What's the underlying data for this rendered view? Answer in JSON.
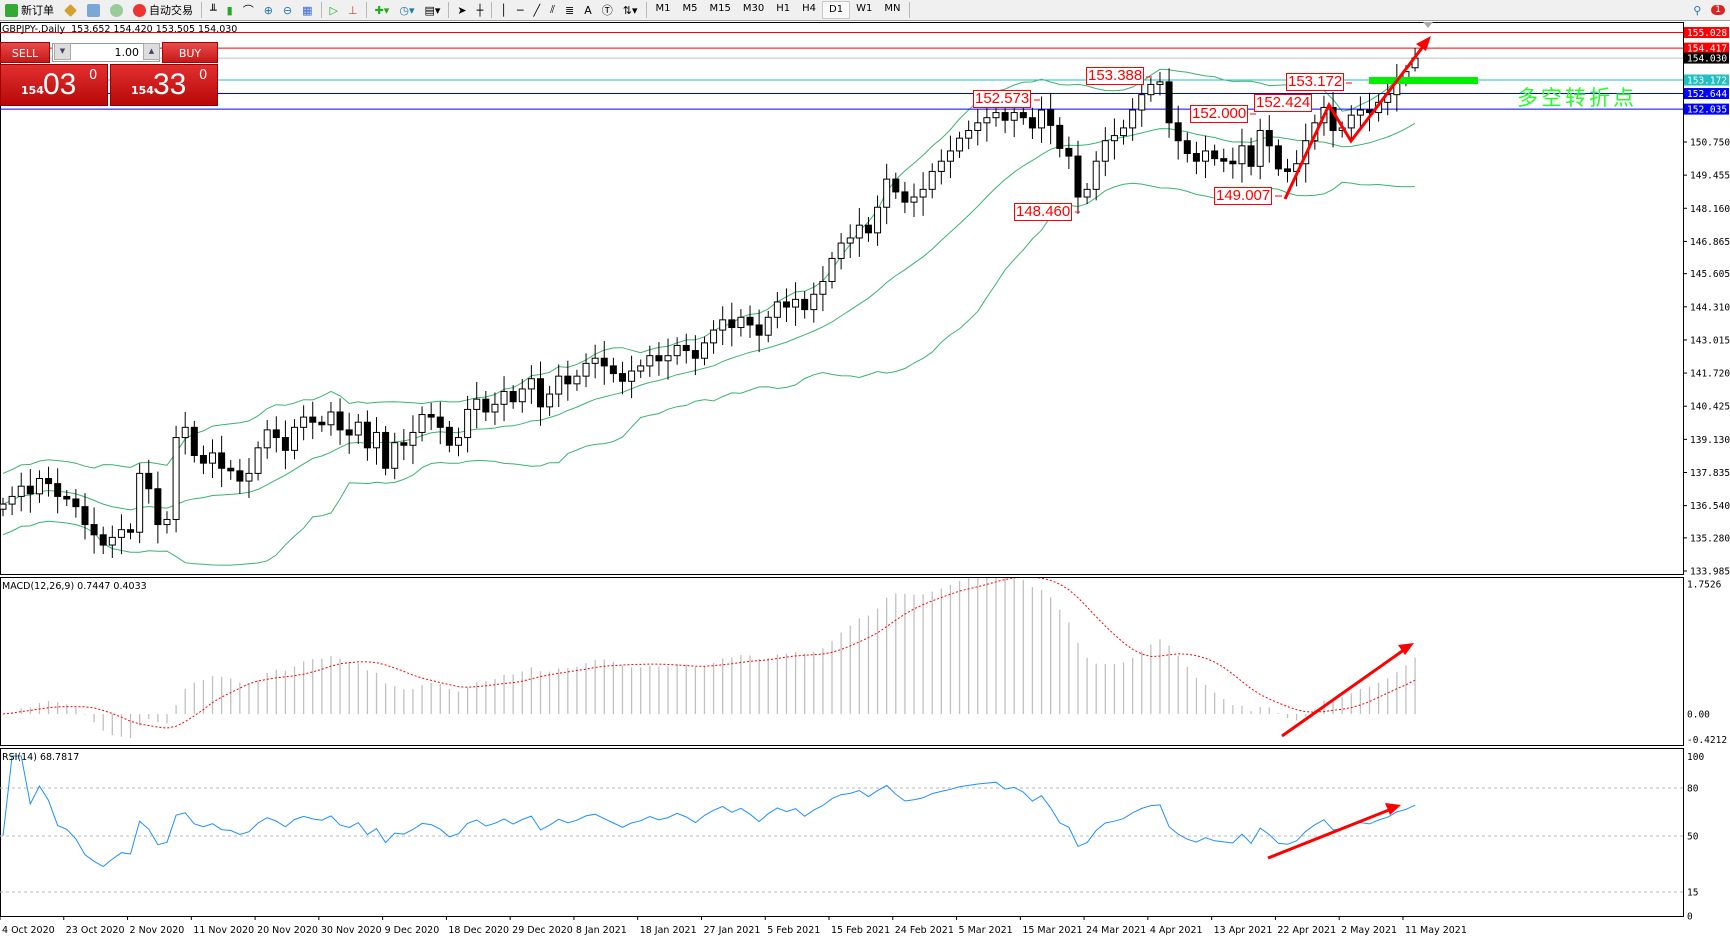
{
  "toolbar": {
    "new_order": "新订单",
    "auto_trading": "自动交易",
    "timeframes": [
      "M1",
      "M5",
      "M15",
      "M30",
      "H1",
      "H4",
      "D1",
      "W1",
      "MN"
    ],
    "active_timeframe": "D1",
    "notification_count": "1"
  },
  "chart_header": {
    "title": "GBPJPY-.Daily  153.652 154.420 153.505 154.030"
  },
  "trade_panel": {
    "sell_label": "SELL",
    "buy_label": "BUY",
    "lot": "1.00",
    "sell_big": "154",
    "sell_digits": "03",
    "sell_sup": "0",
    "buy_big": "154",
    "buy_digits": "33",
    "buy_sup": "0",
    "color": "#d42020"
  },
  "annotations": {
    "a1": "152.573",
    "a2": "153.388",
    "a3": "153.172",
    "a4": "152.424",
    "a5": "152.000",
    "a6": "149.007",
    "a7": "148.460",
    "pivot_text": "多空转折点",
    "pivot_color": "#22ff22",
    "arrow_color": "#ff0000"
  },
  "chart_data": {
    "type": "candlestick",
    "symbol": "GBPJPY-",
    "timeframe": "Daily",
    "price_axis": {
      "ticks": [
        "150.750",
        "149.455",
        "148.160",
        "146.865",
        "145.605",
        "144.310",
        "143.015",
        "141.720",
        "140.425",
        "139.130",
        "137.835",
        "136.540",
        "135.280",
        "133.985"
      ],
      "range": [
        133.985,
        155.028
      ]
    },
    "horizontal_lines": [
      {
        "price": "155.028",
        "color": "#ff0000"
      },
      {
        "price": "154.417",
        "color": "#ff0000"
      },
      {
        "price": "154.030",
        "color": "#000000",
        "line_color": "#c0c0c0"
      },
      {
        "price": "153.172",
        "color": "#20c0c0"
      },
      {
        "price": "152.644",
        "color": "#0000ff"
      },
      {
        "price": "152.035",
        "color": "#0000ff"
      }
    ],
    "x_labels": [
      "4 Oct 2020",
      "23 Oct 2020",
      "2 Nov 2020",
      "11 Nov 2020",
      "20 Nov 2020",
      "30 Nov 2020",
      "9 Dec 2020",
      "18 Dec 2020",
      "29 Dec 2020",
      "8 Jan 2021",
      "18 Jan 2021",
      "27 Jan 2021",
      "5 Feb 2021",
      "15 Feb 2021",
      "24 Feb 2021",
      "5 Mar 2021",
      "15 Mar 2021",
      "24 Mar 2021",
      "4 Apr 2021",
      "13 Apr 2021",
      "22 Apr 2021",
      "2 May 2021",
      "11 May 2021"
    ],
    "closes": [
      136.6,
      136.9,
      137.3,
      137.0,
      137.6,
      137.4,
      136.9,
      136.8,
      136.5,
      135.8,
      135.4,
      135.0,
      135.3,
      135.6,
      135.5,
      137.8,
      137.2,
      135.8,
      136.0,
      139.2,
      139.6,
      138.5,
      138.2,
      138.6,
      138.0,
      137.9,
      137.5,
      137.8,
      138.8,
      139.5,
      139.2,
      138.7,
      139.6,
      140.0,
      139.8,
      139.7,
      140.2,
      139.5,
      139.3,
      139.8,
      138.8,
      139.4,
      138.0,
      139.0,
      138.9,
      139.4,
      140.1,
      140.0,
      139.6,
      138.9,
      139.2,
      140.3,
      140.7,
      140.2,
      140.5,
      141.0,
      140.6,
      141.1,
      141.5,
      140.4,
      140.9,
      141.6,
      141.3,
      141.6,
      142.1,
      142.3,
      142.0,
      141.7,
      141.4,
      141.8,
      142.0,
      142.4,
      142.2,
      142.4,
      142.8,
      142.6,
      142.3,
      142.9,
      143.4,
      143.8,
      143.5,
      143.9,
      143.6,
      143.2,
      143.9,
      144.5,
      144.3,
      144.6,
      144.2,
      144.8,
      145.3,
      146.2,
      146.8,
      147.0,
      147.5,
      147.2,
      148.2,
      149.3,
      148.8,
      148.4,
      148.6,
      148.9,
      149.6,
      150.0,
      150.4,
      150.9,
      151.2,
      151.5,
      151.7,
      151.9,
      151.6,
      151.9,
      151.7,
      151.3,
      152.0,
      151.4,
      150.5,
      150.2,
      148.6,
      148.9,
      150.0,
      150.8,
      151.0,
      151.3,
      152.0,
      152.6,
      153.0,
      153.1,
      151.5,
      150.8,
      150.3,
      150.0,
      150.4,
      150.1,
      150.0,
      149.9,
      150.6,
      149.8,
      151.2,
      150.6,
      149.7,
      149.6,
      149.9,
      150.8,
      151.5,
      152.1,
      151.2,
      151.3,
      151.8,
      152.0,
      151.9,
      152.3,
      152.6,
      153.2,
      153.5,
      154.03
    ],
    "last_bar": {
      "open": 153.652,
      "high": 154.42,
      "low": 153.505,
      "close": 154.03
    },
    "bollinger_color": "#3cb371",
    "macd": {
      "label": "MACD(12,26,9) 0.7447 0.4033",
      "ticks": [
        "1.7526",
        "0.00",
        "-0.4212"
      ],
      "range": [
        -0.4212,
        1.7526
      ],
      "histogram_color": "#c0c0c0",
      "signal_color": "#ff0000"
    },
    "rsi": {
      "label": "RSI(14) 68.7817",
      "ticks": [
        "100",
        "80",
        "50",
        "15",
        "0"
      ],
      "levels": [
        80,
        50,
        15
      ],
      "range": [
        0,
        100
      ],
      "color": "#1e90ff"
    }
  }
}
